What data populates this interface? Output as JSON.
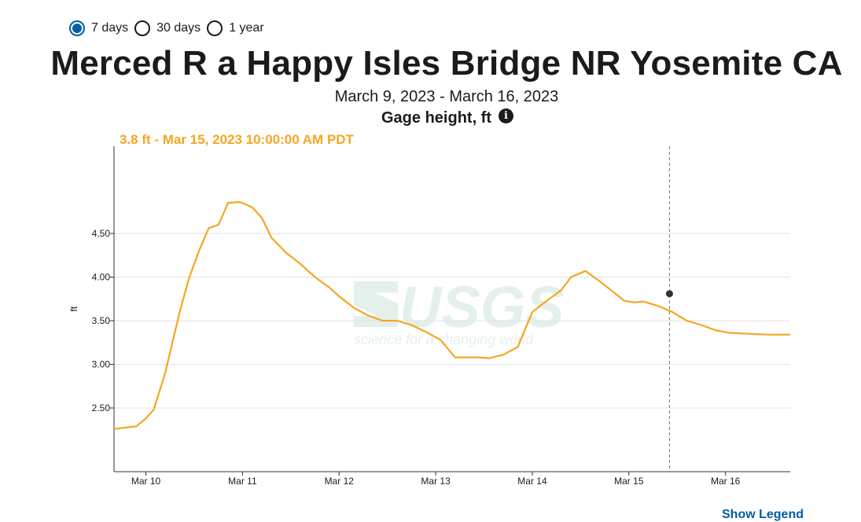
{
  "period_options": [
    {
      "label": "7 days",
      "selected": true
    },
    {
      "label": "30 days",
      "selected": false
    },
    {
      "label": "1 year",
      "selected": false
    }
  ],
  "site_title": "Merced R a Happy Isles Bridge NR Yosemite CA",
  "date_range": "March 9, 2023 - March 16, 2023",
  "parameter": "Gage height, ft",
  "info_icon": "info-icon",
  "tooltip": "3.8 ft - Mar 15, 2023 10:00:00 AM PDT",
  "watermark": {
    "logo": "USGS",
    "tagline": "science for a changing world"
  },
  "show_legend_label": "Show Legend",
  "colors": {
    "series": "#f5a623",
    "accent": "#005ea2",
    "text": "#1b1b1b"
  },
  "chart_data": {
    "type": "line",
    "title": "Merced R a Happy Isles Bridge NR Yosemite CA",
    "subtitle": "March 9, 2023 - March 16, 2023",
    "ylabel": "ft",
    "xlabel": "",
    "x_ticks": [
      {
        "label": "Mar 10",
        "day": 1.0
      },
      {
        "label": "Mar 11",
        "day": 2.0
      },
      {
        "label": "Mar 12",
        "day": 3.0
      },
      {
        "label": "Mar 13",
        "day": 4.0
      },
      {
        "label": "Mar 14",
        "day": 5.0
      },
      {
        "label": "Mar 15",
        "day": 6.0
      },
      {
        "label": "Mar 16",
        "day": 7.0
      }
    ],
    "y_ticks": [
      2.5,
      3.0,
      3.5,
      4.0,
      4.5
    ],
    "y_tick_labels": [
      "2.50",
      "3.00",
      "3.50",
      "4.00",
      "4.50"
    ],
    "xlim_days": [
      0.67,
      7.67
    ],
    "ylim": [
      1.77,
      5.5
    ],
    "grid": "horizontal",
    "series": [
      {
        "x_days": [
          0.67,
          0.9,
          1.0,
          1.08,
          1.2,
          1.35,
          1.45,
          1.55,
          1.65,
          1.75,
          1.8,
          1.85,
          1.95,
          2.0,
          2.1,
          2.2,
          2.3,
          2.45,
          2.6,
          2.75,
          2.9,
          3.0,
          3.15,
          3.3,
          3.45,
          3.6,
          3.75,
          3.9,
          4.05,
          4.2,
          4.35,
          4.45,
          4.55,
          4.7,
          4.85,
          5.0,
          5.15,
          5.3,
          5.4,
          5.55,
          5.7,
          5.85,
          5.95,
          6.05,
          6.15,
          6.3,
          6.45,
          6.6,
          6.75,
          6.9,
          7.05,
          7.25,
          7.45,
          7.67
        ],
        "values": [
          2.26,
          2.29,
          2.38,
          2.48,
          2.9,
          3.6,
          4.0,
          4.3,
          4.56,
          4.6,
          4.72,
          4.85,
          4.86,
          4.85,
          4.8,
          4.68,
          4.45,
          4.28,
          4.15,
          4.0,
          3.88,
          3.78,
          3.65,
          3.56,
          3.5,
          3.5,
          3.45,
          3.37,
          3.28,
          3.08,
          3.08,
          3.08,
          3.07,
          3.11,
          3.2,
          3.6,
          3.73,
          3.85,
          4.0,
          4.07,
          3.95,
          3.82,
          3.73,
          3.71,
          3.72,
          3.67,
          3.6,
          3.5,
          3.45,
          3.39,
          3.36,
          3.35,
          3.34,
          3.34
        ],
        "color": "#f5a623"
      }
    ],
    "highlight_point": {
      "x_day": 6.42,
      "value": 3.81,
      "label": "3.8 ft - Mar 15, 2023 10:00:00 AM PDT"
    }
  }
}
